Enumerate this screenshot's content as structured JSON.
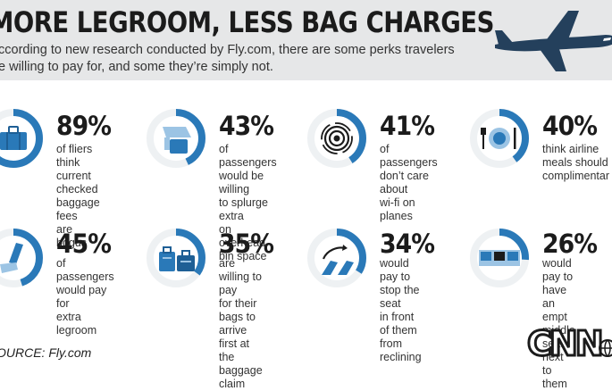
{
  "header": {
    "title": "MORE LEGROOM, LESS BAG CHARGES",
    "subtitle_line1": "ccording to new research conducted by Fly.com, there are some perks travelers",
    "subtitle_line2": "e willing to pay for, and some they’re simply not."
  },
  "chart_data": {
    "type": "ring-stats",
    "colors": {
      "accent": "#2a79b8",
      "light": "#9cc4e4",
      "track": "#eef1f3",
      "dark": "#1b1b1b"
    },
    "items": [
      {
        "value": 89,
        "label": "89%",
        "desc": "of fliers think\ncurrent checked\nbaggage fees\nare bogus",
        "icon": "suitcase-icon"
      },
      {
        "value": 43,
        "label": "43%",
        "desc": "of passengers\nwould be willing\nto splurge extra\non overhead\nbin space",
        "icon": "overhead-bin-icon"
      },
      {
        "value": 41,
        "label": "41%",
        "desc": "of passengers\ndon’t care about\nwi-fi on planes",
        "icon": "wifi-icon"
      },
      {
        "value": 40,
        "label": "40%",
        "desc": "think airline\nmeals should\ncomplimentar",
        "icon": "meal-plate-icon"
      },
      {
        "value": 45,
        "label": "45%",
        "desc": "of passengers\nwould pay for\nextra legroom",
        "icon": "legroom-seat-icon"
      },
      {
        "value": 35,
        "label": "35%",
        "desc": "are willing to pay\nfor their bags to\narrive first at the\nbaggage claim",
        "icon": "luggage-icon"
      },
      {
        "value": 34,
        "label": "34%",
        "desc": "would pay to\nstop the seat\nin front of them\nfrom reclining",
        "icon": "reclining-seat-icon"
      },
      {
        "value": 26,
        "label": "26%",
        "desc": "would pay to\nhave an empt\nmiddle seat\nnext to them",
        "icon": "empty-middle-seat-icon"
      }
    ]
  },
  "footer": {
    "source": "OURCE: Fly.com",
    "logo_text": "CNN"
  }
}
